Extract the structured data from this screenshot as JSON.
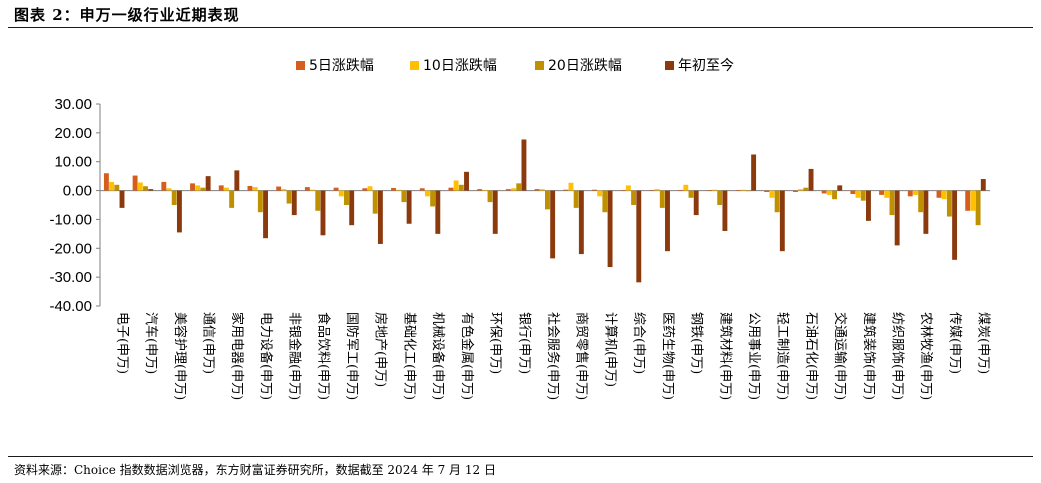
{
  "title": "图表 2：申万一级行业近期表现",
  "source": "资料来源：Choice 指数数据浏览器，东方财富证券研究所，数据截至 2024 年 7 月 12 日",
  "colors": {
    "s5": "#D55E1C",
    "s10": "#FFC000",
    "s20": "#BF9000",
    "ytd": "#8B3A0E",
    "axis": "#7f7f7f"
  },
  "chart_data": {
    "type": "bar",
    "title": "",
    "xlabel": "",
    "ylabel": "",
    "ylim": [
      -40,
      30
    ],
    "yticks": [
      "30.00",
      "20.00",
      "10.00",
      "0.00",
      "-10.00",
      "-20.00",
      "-30.00",
      "-40.00"
    ],
    "legend_position": "top-center",
    "categories": [
      "电子(申万)",
      "汽车(申万)",
      "美容护理(申万)",
      "通信(申万)",
      "家用电器(申万)",
      "电力设备(申万)",
      "非银金融(申万)",
      "食品饮料(申万)",
      "国防军工(申万)",
      "房地产(申万)",
      "基础化工(申万)",
      "机械设备(申万)",
      "有色金属(申万)",
      "环保(申万)",
      "银行(申万)",
      "社会服务(申万)",
      "商贸零售(申万)",
      "计算机(申万)",
      "综合(申万)",
      "医药生物(申万)",
      "钢铁(申万)",
      "建筑材料(申万)",
      "公用事业(申万)",
      "轻工制造(申万)",
      "石油石化(申万)",
      "交通运输(申万)",
      "建筑装饰(申万)",
      "纺织服饰(申万)",
      "农林牧渔(申万)",
      "传媒(申万)",
      "煤炭(申万)"
    ],
    "series": [
      {
        "name": "5日涨跌幅",
        "color_key": "s5",
        "values": [
          6.0,
          5.2,
          3.0,
          2.5,
          1.8,
          1.6,
          1.4,
          1.2,
          1.0,
          0.8,
          0.9,
          0.8,
          1.0,
          0.5,
          0.5,
          0.5,
          0.3,
          0.3,
          0.2,
          0.2,
          0.2,
          0.2,
          0.2,
          -0.5,
          -0.5,
          -1.0,
          -1.2,
          -1.5,
          -2.0,
          -2.5,
          -7.0
        ]
      },
      {
        "name": "10日涨跌幅",
        "color_key": "s10",
        "values": [
          3.0,
          2.8,
          0.8,
          1.8,
          1.0,
          1.2,
          0.5,
          0.3,
          -2.0,
          1.5,
          0.3,
          -2.0,
          3.5,
          0.2,
          0.8,
          0.5,
          2.7,
          -2.0,
          1.8,
          0.5,
          2.0,
          0.3,
          0.3,
          -2.5,
          0.5,
          -1.5,
          -2.5,
          -2.5,
          -1.5,
          -3.0,
          -7.0
        ]
      },
      {
        "name": "20日涨跌幅",
        "color_key": "s20",
        "values": [
          2.0,
          1.5,
          -5.0,
          1.0,
          -6.0,
          -7.5,
          -4.5,
          -7.0,
          -5.0,
          -8.0,
          -4.0,
          -5.5,
          2.0,
          -4.0,
          2.5,
          -6.5,
          -6.0,
          -7.5,
          -5.0,
          -6.0,
          -2.5,
          -5.0,
          0.0,
          -7.5,
          1.0,
          -3.0,
          -3.5,
          -8.5,
          -7.5,
          -9.0,
          -12.0
        ]
      },
      {
        "name": "年初至今",
        "color_key": "ytd",
        "values": [
          -6.0,
          0.5,
          -14.5,
          5.0,
          7.0,
          -16.5,
          -8.5,
          -15.5,
          -12.0,
          -18.5,
          -11.5,
          -15.0,
          6.5,
          -15.0,
          17.7,
          -23.5,
          -22.0,
          -26.5,
          -31.8,
          -21.0,
          -8.5,
          -14.0,
          12.5,
          -21.0,
          7.5,
          1.8,
          -10.5,
          -19.0,
          -15.0,
          -24.0,
          4.0
        ]
      }
    ]
  }
}
